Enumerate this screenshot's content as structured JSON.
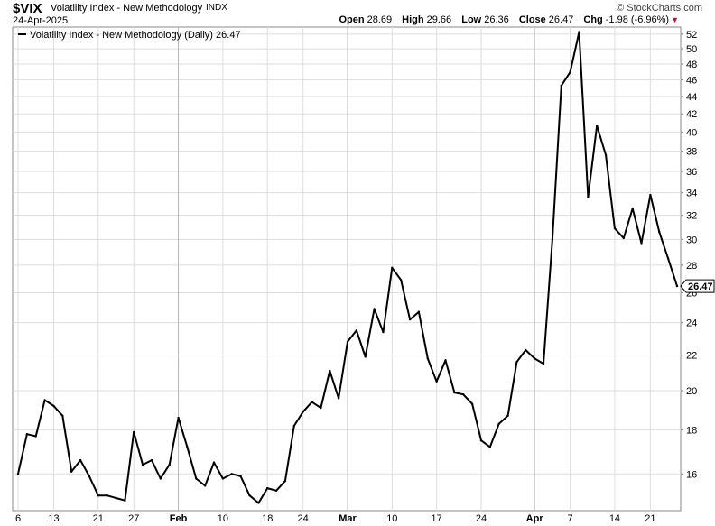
{
  "header": {
    "symbol": "$VIX",
    "name": "Volatility Index - New Methodology",
    "exchange": "INDX",
    "date": "24-Apr-2025",
    "brand": "© StockCharts.com",
    "quote": {
      "open_label": "Open",
      "open": "28.69",
      "high_label": "High",
      "high": "29.66",
      "low_label": "Low",
      "low": "26.36",
      "close_label": "Close",
      "close": "26.47",
      "chg_label": "Chg",
      "chg": "-1.98 (-6.96%)",
      "chg_icon": "triangle-down-icon",
      "chg_color": "#c8102e"
    }
  },
  "chart_data": {
    "type": "line",
    "legend": "Volatility Index - New Methodology (Daily) 26.47",
    "legend_placement": "top-left",
    "last_value_label": "26.47",
    "grid": true,
    "y_scale": "log",
    "ylim": [
      14.5,
      53
    ],
    "y_ticks": [
      "16",
      "18",
      "20",
      "22",
      "24",
      "26",
      "28",
      "30",
      "32",
      "34",
      "36",
      "38",
      "40",
      "42",
      "44",
      "46",
      "48",
      "50",
      "52"
    ],
    "x_ticks": [
      {
        "label": "6",
        "date": "2025-01-06"
      },
      {
        "label": "13",
        "date": "2025-01-13"
      },
      {
        "label": "21",
        "date": "2025-01-21"
      },
      {
        "label": "27",
        "date": "2025-01-27"
      },
      {
        "label": "Feb",
        "date": "2025-02-03",
        "major": true
      },
      {
        "label": "10",
        "date": "2025-02-10"
      },
      {
        "label": "18",
        "date": "2025-02-18"
      },
      {
        "label": "24",
        "date": "2025-02-24"
      },
      {
        "label": "Mar",
        "date": "2025-03-03",
        "major": true
      },
      {
        "label": "10",
        "date": "2025-03-10"
      },
      {
        "label": "17",
        "date": "2025-03-17"
      },
      {
        "label": "24",
        "date": "2025-03-24"
      },
      {
        "label": "Apr",
        "date": "2025-04-01",
        "major": true
      },
      {
        "label": "7",
        "date": "2025-04-07"
      },
      {
        "label": "14",
        "date": "2025-04-14"
      },
      {
        "label": "21",
        "date": "2025-04-21"
      }
    ],
    "series": [
      {
        "color": "#000000",
        "x": [
          "2025-01-06",
          "2025-01-07",
          "2025-01-08",
          "2025-01-10",
          "2025-01-13",
          "2025-01-14",
          "2025-01-15",
          "2025-01-16",
          "2025-01-17",
          "2025-01-21",
          "2025-01-22",
          "2025-01-23",
          "2025-01-24",
          "2025-01-27",
          "2025-01-28",
          "2025-01-29",
          "2025-01-30",
          "2025-01-31",
          "2025-02-03",
          "2025-02-04",
          "2025-02-05",
          "2025-02-06",
          "2025-02-07",
          "2025-02-10",
          "2025-02-11",
          "2025-02-12",
          "2025-02-13",
          "2025-02-14",
          "2025-02-18",
          "2025-02-19",
          "2025-02-20",
          "2025-02-21",
          "2025-02-24",
          "2025-02-25",
          "2025-02-26",
          "2025-02-27",
          "2025-02-28",
          "2025-03-03",
          "2025-03-04",
          "2025-03-05",
          "2025-03-06",
          "2025-03-07",
          "2025-03-10",
          "2025-03-11",
          "2025-03-12",
          "2025-03-13",
          "2025-03-14",
          "2025-03-17",
          "2025-03-18",
          "2025-03-19",
          "2025-03-20",
          "2025-03-21",
          "2025-03-24",
          "2025-03-25",
          "2025-03-26",
          "2025-03-27",
          "2025-03-28",
          "2025-03-31",
          "2025-04-01",
          "2025-04-02",
          "2025-04-03",
          "2025-04-04",
          "2025-04-07",
          "2025-04-08",
          "2025-04-09",
          "2025-04-10",
          "2025-04-11",
          "2025-04-14",
          "2025-04-15",
          "2025-04-16",
          "2025-04-17",
          "2025-04-21",
          "2025-04-22",
          "2025-04-23",
          "2025-04-24"
        ],
        "y": [
          16.0,
          17.8,
          17.7,
          19.5,
          19.2,
          18.7,
          16.1,
          16.6,
          15.9,
          15.1,
          15.1,
          15.0,
          14.9,
          17.9,
          16.4,
          16.6,
          15.8,
          16.4,
          18.6,
          17.2,
          15.8,
          15.5,
          16.5,
          15.8,
          16.0,
          15.9,
          15.1,
          14.8,
          15.4,
          15.3,
          15.7,
          18.2,
          18.9,
          19.4,
          19.1,
          21.1,
          19.6,
          22.8,
          23.5,
          21.9,
          24.9,
          23.4,
          27.8,
          26.9,
          24.2,
          24.7,
          21.8,
          20.5,
          21.7,
          19.9,
          19.8,
          19.3,
          17.5,
          17.2,
          18.3,
          18.7,
          21.6,
          22.3,
          21.8,
          21.5,
          30.0,
          45.3,
          46.98,
          52.3,
          33.6,
          40.7,
          37.6,
          30.9,
          30.1,
          32.6,
          29.7,
          33.8,
          30.6,
          28.5,
          26.47
        ]
      }
    ]
  }
}
